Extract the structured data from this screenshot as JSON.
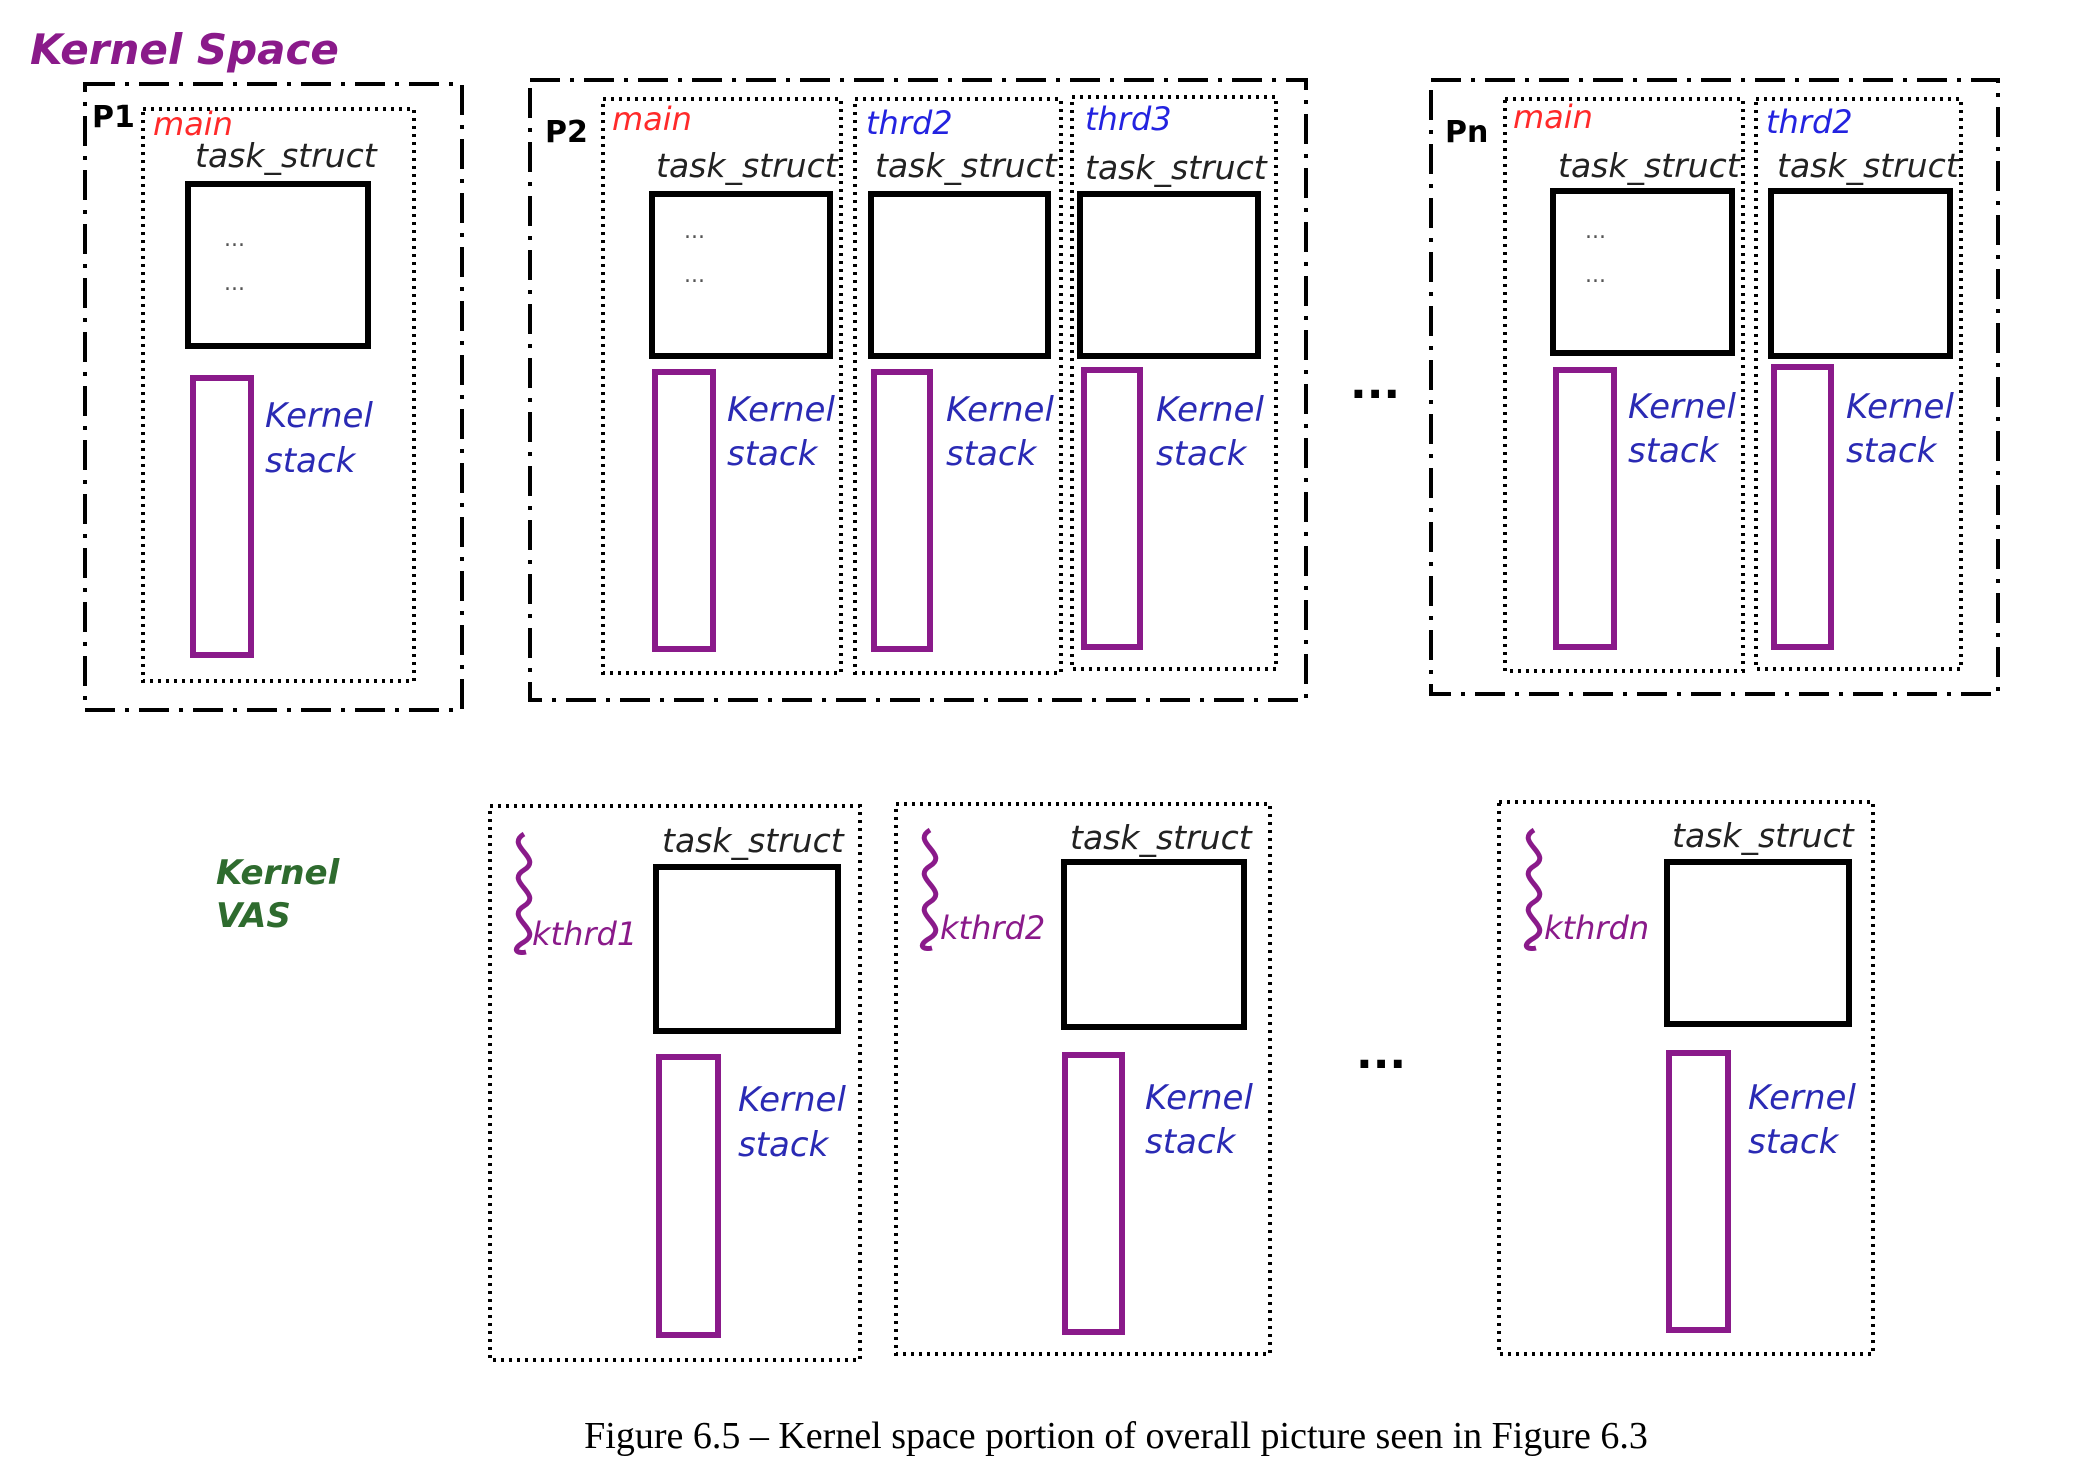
{
  "colors": {
    "title": "#8a1a8a",
    "thread_main": "#ff2a2a",
    "thread_other": "#2323e0",
    "kernel_stack_text": "#2a2ab4",
    "kernel_stack_box": "#8a1a8a",
    "kthread": "#8a1a8a",
    "kernel_vas": "#2e6b2e",
    "ink": "#000000"
  },
  "title": "Kernel Space",
  "processes": [
    {
      "label": "P1",
      "threads": [
        {
          "name": "main",
          "kind": "main",
          "task_struct": "task_struct",
          "ellipsis": [
            "...",
            "..."
          ],
          "stack_label": [
            "Kernel",
            "stack"
          ]
        }
      ]
    },
    {
      "label": "P2",
      "threads": [
        {
          "name": "main",
          "kind": "main",
          "task_struct": "task_struct",
          "ellipsis": [
            "...",
            "..."
          ],
          "stack_label": [
            "Kernel",
            "stack"
          ]
        },
        {
          "name": "thrd2",
          "kind": "other",
          "task_struct": "task_struct",
          "ellipsis": [],
          "stack_label": [
            "Kernel",
            "stack"
          ]
        },
        {
          "name": "thrd3",
          "kind": "other",
          "task_struct": "task_struct",
          "ellipsis": [],
          "stack_label": [
            "Kernel",
            "stack"
          ]
        }
      ]
    },
    {
      "label": "Pn",
      "threads": [
        {
          "name": "main",
          "kind": "main",
          "task_struct": "task_struct",
          "ellipsis": [
            "...",
            "..."
          ],
          "stack_label": [
            "Kernel",
            "stack"
          ]
        },
        {
          "name": "thrd2",
          "kind": "other",
          "task_struct": "task_struct",
          "ellipsis": [],
          "stack_label": [
            "Kernel",
            "stack"
          ]
        }
      ]
    }
  ],
  "process_gap_ellipsis": "...",
  "kernel_vas_label": [
    "Kernel",
    "VAS"
  ],
  "kthreads": [
    {
      "name": "kthrd1",
      "task_struct": "task_struct",
      "stack_label": [
        "Kernel",
        "stack"
      ]
    },
    {
      "name": "kthrd2",
      "task_struct": "task_struct",
      "stack_label": [
        "Kernel",
        "stack"
      ]
    },
    {
      "name": "kthrdn",
      "task_struct": "task_struct",
      "stack_label": [
        "Kernel",
        "stack"
      ]
    }
  ],
  "kthread_gap_ellipsis": "...",
  "caption": "Figure 6.5 – Kernel space portion of overall picture seen in Figure 6.3"
}
